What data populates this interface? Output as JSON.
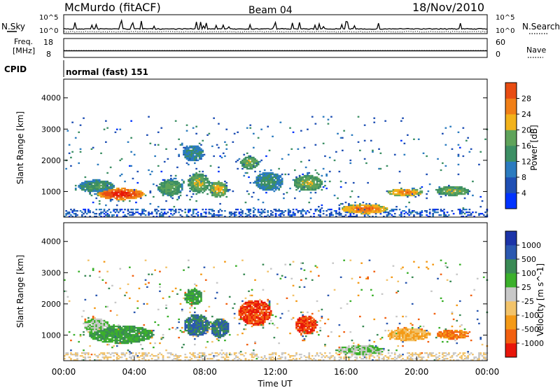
{
  "header": {
    "title": "McMurdo (fitACF)",
    "beam": "Beam 04",
    "date": "18/Nov/2010"
  },
  "panel_labels": {
    "nsky": "N.Sky",
    "nsearch": "N.Search",
    "freq_line1": "Freq.",
    "freq_line2": "[MHz]",
    "nave": "Nave",
    "cpid": "CPID",
    "cpid_value": "normal (fast) 151"
  },
  "colors": {
    "power": [
      "#0033ff",
      "#1f4fb4",
      "#2b7bbf",
      "#3c8f64",
      "#5fa35a",
      "#f2b21b",
      "#f07f17",
      "#e84c12",
      "#e8160a"
    ],
    "velocity": [
      "#e8160a",
      "#f26010",
      "#f49a17",
      "#f2c36a",
      "#c8c8c8",
      "#3bb02b",
      "#3a8a55",
      "#2b58b0",
      "#1c34a8"
    ]
  },
  "chart_data": [
    {
      "type": "line",
      "panel": "noise",
      "series": [
        {
          "name": "N.Sky",
          "axis": "left",
          "style": "solid",
          "level": 0.25
        },
        {
          "name": "N.Search",
          "axis": "right",
          "style": "dotted",
          "level": 0.1
        }
      ],
      "ylim_left_ticks": [
        "10^5",
        "10^0"
      ],
      "ylim_right_ticks": [
        "10^5",
        "10^0"
      ],
      "xlim": [
        0,
        24
      ]
    },
    {
      "type": "line",
      "panel": "frequency",
      "series": [
        {
          "name": "Freq.",
          "axis": "left",
          "style": "solid",
          "value": 11.5
        },
        {
          "name": "Nave",
          "axis": "right",
          "style": "dotted",
          "value": 22
        }
      ],
      "ylim_left": [
        8,
        18
      ],
      "ylim_right": [
        0,
        60
      ],
      "left_ticks": [
        "18",
        "8"
      ],
      "right_ticks": [
        "60",
        "0"
      ],
      "xlim": [
        0,
        24
      ]
    },
    {
      "type": "heatmap",
      "panel": "power",
      "ylabel": "Slant Range [km]",
      "yticks": [
        "1000",
        "2000",
        "3000",
        "4000"
      ],
      "ylim": [
        180,
        4600
      ],
      "xlim": [
        0,
        24
      ],
      "colorbar_label": "Power [dB]",
      "colorbar_ticks": [
        "4",
        "8",
        "12",
        "16",
        "20",
        "24",
        "28"
      ],
      "colorbar_range": [
        0,
        32
      ],
      "blobs": [
        {
          "t": 3.2,
          "r": 900,
          "dt": 1.3,
          "dr": 180,
          "v": 30
        },
        {
          "t": 1.8,
          "r": 1150,
          "dt": 1.0,
          "dr": 200,
          "v": 14
        },
        {
          "t": 6.0,
          "r": 1100,
          "dt": 0.7,
          "dr": 250,
          "v": 16
        },
        {
          "t": 7.6,
          "r": 1250,
          "dt": 0.6,
          "dr": 300,
          "v": 18
        },
        {
          "t": 8.7,
          "r": 1050,
          "dt": 0.5,
          "dr": 250,
          "v": 20
        },
        {
          "t": 10.5,
          "r": 1900,
          "dt": 0.5,
          "dr": 200,
          "v": 18
        },
        {
          "t": 11.6,
          "r": 1300,
          "dt": 0.8,
          "dr": 300,
          "v": 13
        },
        {
          "t": 13.8,
          "r": 1250,
          "dt": 0.8,
          "dr": 250,
          "v": 18
        },
        {
          "t": 17.0,
          "r": 420,
          "dt": 1.3,
          "dr": 150,
          "v": 25
        },
        {
          "t": 19.3,
          "r": 950,
          "dt": 1.0,
          "dr": 120,
          "v": 24
        },
        {
          "t": 22.0,
          "r": 1000,
          "dt": 0.9,
          "dr": 150,
          "v": 18
        },
        {
          "t": 7.3,
          "r": 2200,
          "dt": 0.6,
          "dr": 250,
          "v": 12
        }
      ]
    },
    {
      "type": "heatmap",
      "panel": "velocity",
      "ylabel": "Slant Range [km]",
      "yticks": [
        "1000",
        "2000",
        "3000",
        "4000"
      ],
      "ylim": [
        180,
        4600
      ],
      "xlim": [
        0,
        24
      ],
      "xticks": [
        "00:00",
        "04:00",
        "08:00",
        "12:00",
        "16:00",
        "20:00",
        "00:00"
      ],
      "xlabel": "Time UT",
      "colorbar_label": "Velocity [m s^-1]",
      "colorbar_ticks": [
        "-1000",
        "-500",
        "-100",
        "-25",
        "25",
        "100",
        "500",
        "1000"
      ],
      "blobs": [
        {
          "t": 3.2,
          "r": 1000,
          "dt": 1.8,
          "dr": 280,
          "v": 6
        },
        {
          "t": 1.8,
          "r": 1300,
          "dt": 0.7,
          "dr": 200,
          "v": 5
        },
        {
          "t": 7.5,
          "r": 1300,
          "dt": 0.7,
          "dr": 350,
          "v": 7
        },
        {
          "t": 8.8,
          "r": 1200,
          "dt": 0.5,
          "dr": 300,
          "v": 7
        },
        {
          "t": 10.8,
          "r": 1700,
          "dt": 0.9,
          "dr": 400,
          "v": 1
        },
        {
          "t": 13.7,
          "r": 1300,
          "dt": 0.6,
          "dr": 300,
          "v": 1
        },
        {
          "t": 16.8,
          "r": 500,
          "dt": 1.3,
          "dr": 150,
          "v": 5
        },
        {
          "t": 19.5,
          "r": 1000,
          "dt": 1.2,
          "dr": 200,
          "v": 3
        },
        {
          "t": 22.0,
          "r": 1000,
          "dt": 0.9,
          "dr": 150,
          "v": 2
        },
        {
          "t": 7.3,
          "r": 2200,
          "dt": 0.5,
          "dr": 250,
          "v": 6
        }
      ]
    }
  ]
}
